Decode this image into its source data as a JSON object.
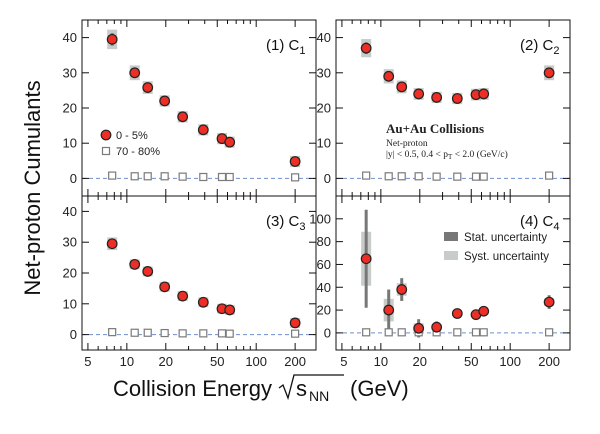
{
  "figure": {
    "ylabel": "Net-proton Cumulants",
    "xlabel_main": "Collision Energy",
    "xlabel_s": "s",
    "xlabel_sub": "NN",
    "xlabel_unit": "(GeV)"
  },
  "chart_data": [
    {
      "type": "scatter",
      "panel_label": "(1) C",
      "panel_sub": "1",
      "xscale": "log",
      "xlim": [
        4.5,
        290
      ],
      "ylim": [
        -5,
        45
      ],
      "yticks": [
        0,
        10,
        20,
        30,
        40
      ],
      "xticks": [
        5,
        10,
        20,
        50,
        100,
        200
      ],
      "x": [
        7.7,
        11.5,
        14.5,
        19.6,
        27,
        39,
        54.4,
        62.4,
        200
      ],
      "series": [
        {
          "name": "0 - 5%",
          "values": [
            39.5,
            30.0,
            25.8,
            22.0,
            17.5,
            13.8,
            11.3,
            10.3,
            4.8
          ]
        },
        {
          "name": "70 - 80%",
          "values": [
            0.8,
            0.6,
            0.6,
            0.6,
            0.5,
            0.4,
            0.4,
            0.4,
            0.3
          ]
        }
      ],
      "legend": {
        "placement": "left",
        "entries": [
          "0 - 5%",
          "70 - 80%"
        ]
      }
    },
    {
      "type": "scatter",
      "panel_label": "(2) C",
      "panel_sub": "2",
      "xscale": "log",
      "xlim": [
        4.5,
        290
      ],
      "ylim": [
        -5,
        45
      ],
      "yticks": [
        0,
        10,
        20,
        30,
        40
      ],
      "xticks": [
        5,
        10,
        20,
        50,
        100,
        200
      ],
      "x": [
        7.7,
        11.5,
        14.5,
        19.6,
        27,
        39,
        54.4,
        62.4,
        200
      ],
      "series": [
        {
          "name": "0 - 5%",
          "values": [
            37.0,
            29.0,
            26.0,
            24.0,
            23.0,
            22.7,
            23.8,
            24.0,
            30.0
          ]
        },
        {
          "name": "70 - 80%",
          "values": [
            0.8,
            0.6,
            0.6,
            0.6,
            0.5,
            0.5,
            0.5,
            0.5,
            0.8
          ]
        }
      ],
      "annotation": {
        "title": "Au+Au Collisions",
        "line1": "Net-proton",
        "line2": "|y| < 0.5,   0.4 < p",
        "line2_sub": "T",
        "line2_tail": " < 2.0 (GeV/c)"
      }
    },
    {
      "type": "scatter",
      "panel_label": "(3) C",
      "panel_sub": "3",
      "xscale": "log",
      "xlim": [
        4.5,
        290
      ],
      "ylim": [
        -5,
        45
      ],
      "yticks": [
        0,
        10,
        20,
        30,
        40
      ],
      "xticks": [
        5,
        10,
        20,
        50,
        100,
        200
      ],
      "xticklabels": [
        "5",
        "10",
        "20",
        "50",
        "100",
        "200"
      ],
      "x": [
        7.7,
        11.5,
        14.5,
        19.6,
        27,
        39,
        54.4,
        62.4,
        200
      ],
      "series": [
        {
          "name": "0 - 5%",
          "values": [
            29.5,
            22.8,
            20.5,
            15.5,
            12.5,
            10.5,
            8.4,
            8.0,
            3.8
          ]
        },
        {
          "name": "70 - 80%",
          "values": [
            0.8,
            0.6,
            0.6,
            0.5,
            0.4,
            0.4,
            0.4,
            0.3,
            0.3
          ]
        }
      ]
    },
    {
      "type": "scatter",
      "panel_label": "(4) C",
      "panel_sub": "4",
      "xscale": "log",
      "xlim": [
        4.5,
        290
      ],
      "ylim": [
        -15,
        120
      ],
      "yticks": [
        0,
        20,
        40,
        60,
        80,
        100
      ],
      "xticks": [
        5,
        10,
        20,
        50,
        100,
        200
      ],
      "xticklabels": [
        "5",
        "10",
        "20",
        "50",
        "100",
        "200"
      ],
      "x": [
        7.7,
        11.5,
        14.5,
        19.6,
        27,
        39,
        54.4,
        62.4,
        200
      ],
      "series": [
        {
          "name": "0 - 5%",
          "values": [
            65,
            20,
            38,
            4,
            5,
            17,
            16,
            19,
            27
          ],
          "stat_err": [
            43,
            18,
            10,
            8,
            5,
            3,
            4,
            3,
            6
          ]
        },
        {
          "name": "70 - 80%",
          "values": [
            0.5,
            0.5,
            0.5,
            0.5,
            0.5,
            0.5,
            0.5,
            0.5,
            0.5
          ]
        }
      ],
      "legend": {
        "placement": "top-right",
        "entries": [
          "Stat. uncertainty",
          "Syst. uncertainty"
        ]
      }
    }
  ],
  "colors": {
    "central_fill": "#ee2d24",
    "central_stroke": "#222222",
    "peripheral_stroke": "#7a7a7a",
    "stat_bar": "#777777",
    "syst_band": "#c8ccc8",
    "zero_line": "#6f8fd0"
  }
}
